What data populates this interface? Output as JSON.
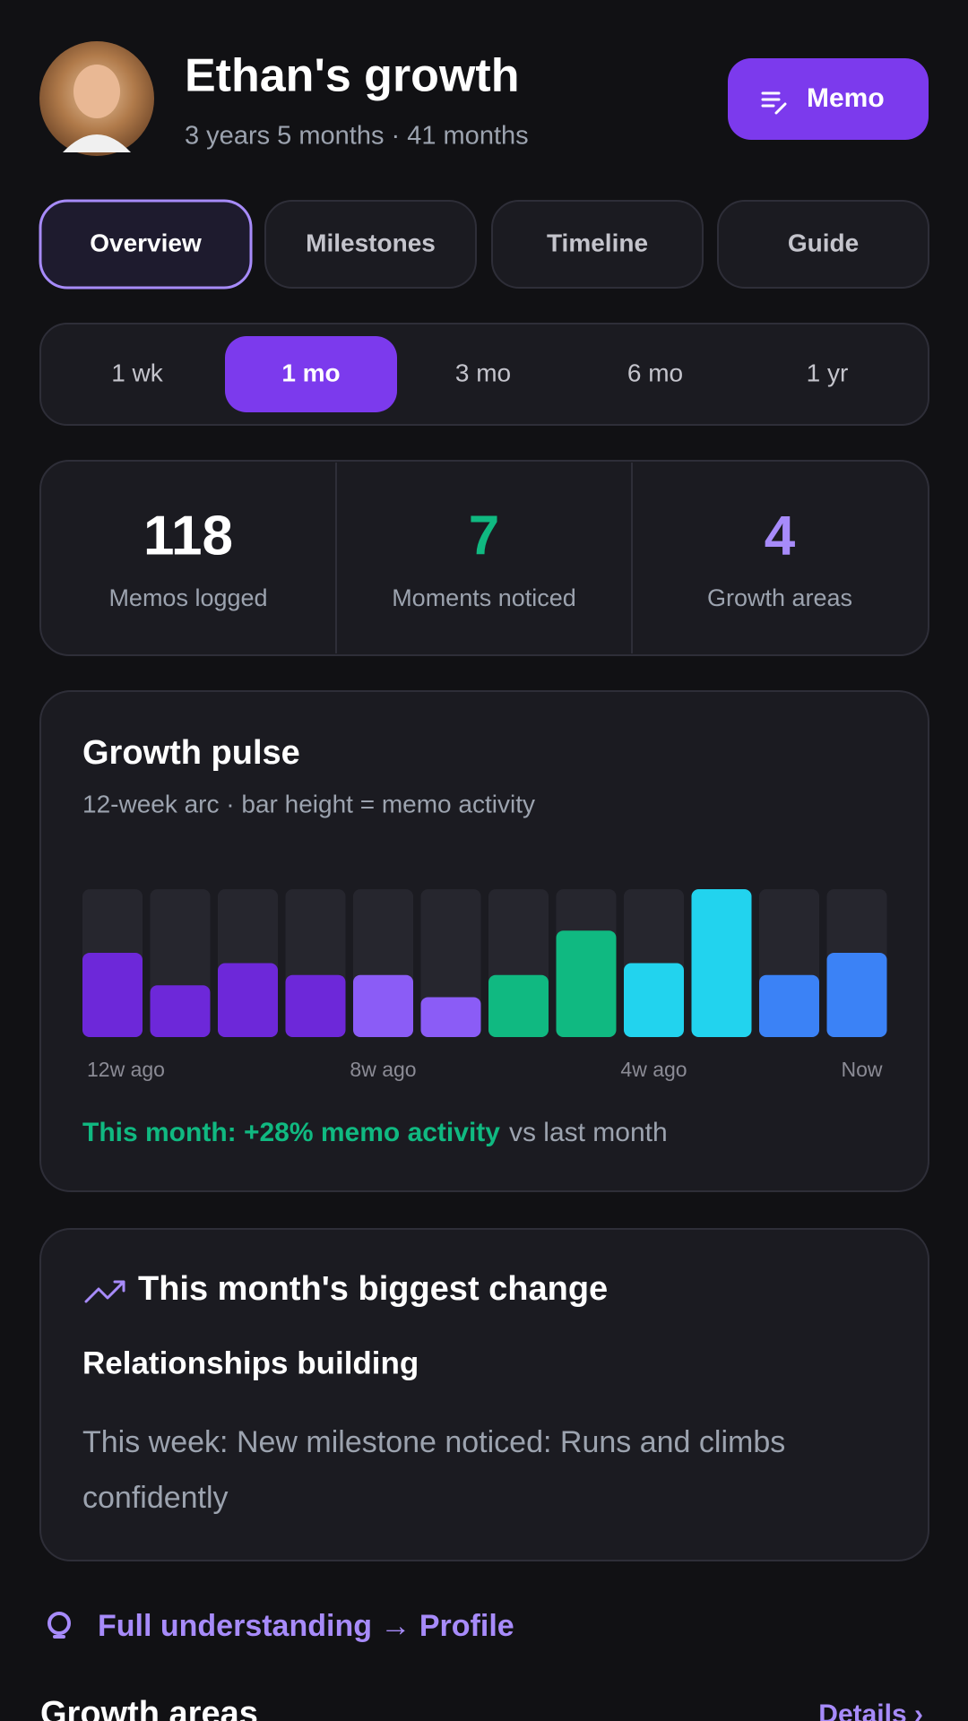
{
  "header": {
    "title": "Ethan's growth",
    "subtitle": "3 years 5 months · 41 months",
    "button": "Memo"
  },
  "tabs": [
    "Overview",
    "Milestones",
    "Timeline",
    "Guide"
  ],
  "ranges": [
    "1 wk",
    "1 mo",
    "3 mo",
    "6 mo",
    "1 yr"
  ],
  "stats": [
    {
      "value": 118,
      "label": "Memos logged"
    },
    {
      "value": 7,
      "label": "Moments noticed"
    },
    {
      "value": 4,
      "label": "Growth areas"
    }
  ],
  "chart_data": {
    "type": "bar",
    "title": "Growth pulse",
    "subtitle": "12-week arc · bar height = memo activity",
    "categories": [
      "12w ago",
      null,
      null,
      null,
      "8w ago",
      null,
      null,
      null,
      "4w ago",
      null,
      null,
      "Now"
    ],
    "values": [
      57,
      35,
      50,
      42,
      42,
      27,
      42,
      72,
      50,
      100,
      42,
      57
    ],
    "colors": [
      "#6d28d9",
      "#6d28d9",
      "#6d28d9",
      "#6d28d9",
      "#8b5cf6",
      "#8b5cf6",
      "#10b981",
      "#10b981",
      "#22d3ee",
      "#22d3ee",
      "#3b82f6",
      "#3b82f6"
    ],
    "ylim": [
      0,
      100
    ],
    "note_highlight": "This month: +28% memo activity",
    "note_rest": "vs last month"
  },
  "change": {
    "heading": "This month's biggest change",
    "subtitle": "Relationships building",
    "body": "This week: New milestone noticed: Runs and climbs confidently"
  },
  "link": "Full understanding → Profile",
  "section": {
    "title": "Growth areas",
    "action": "Details ›"
  }
}
